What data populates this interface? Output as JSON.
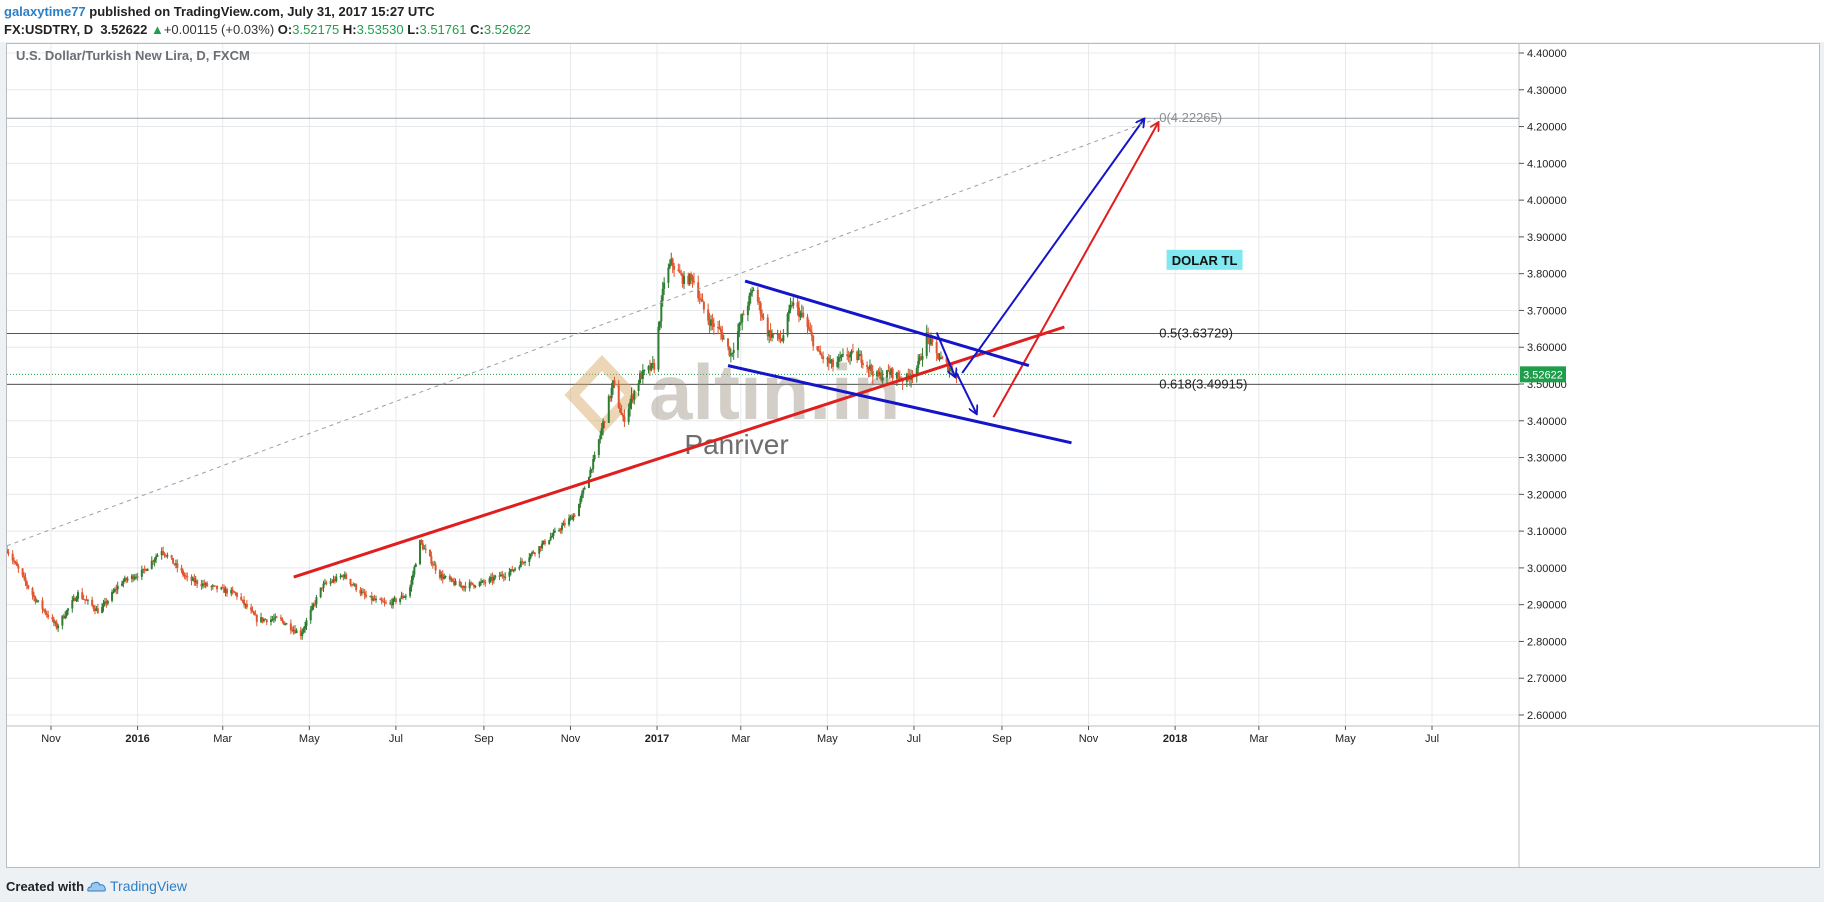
{
  "header": {
    "author": "galaxytime77",
    "published": "published on TradingView.com, July 31, 2017 15:27 UTC",
    "symbol": "FX:USDTRY, D",
    "last": "3.52622",
    "change": "+0.00115 (+0.03%)",
    "o_label": "O:",
    "o_value": "3.52175",
    "h_label": "H:",
    "h_value": "3.53530",
    "l_label": "L:",
    "l_value": "3.51761",
    "c_label": "C:",
    "c_value": "3.52622"
  },
  "footer": {
    "created_with": "Created with",
    "brand": "TradingView"
  },
  "colors": {
    "up_candle": "#2e7d32",
    "down_candle": "#e0552d",
    "trend_red": "#e01e1e",
    "channel_blue": "#1414c8",
    "price_badge": "#1e9e4b",
    "label_bg": "#7fe8f0"
  },
  "chart_data": {
    "type": "candlestick",
    "title": "U.S. Dollar/Turkish New Lira, D, FXCM",
    "ylim": [
      2.56,
      4.45
    ],
    "yticks": [
      "4.40000",
      "4.30000",
      "4.20000",
      "4.10000",
      "4.00000",
      "3.90000",
      "3.80000",
      "3.70000",
      "3.60000",
      "3.50000",
      "3.40000",
      "3.30000",
      "3.20000",
      "3.10000",
      "3.00000",
      "2.90000",
      "2.80000",
      "2.70000",
      "2.60000"
    ],
    "xticks": [
      "Nov",
      "2016",
      "Mar",
      "May",
      "Jul",
      "Sep",
      "Nov",
      "2017",
      "Mar",
      "May",
      "Jul",
      "Sep",
      "Nov",
      "2018",
      "Mar",
      "May",
      "Jul"
    ],
    "current_price": "3.52622",
    "fib_levels": [
      {
        "label": "0(4.22265)",
        "value": 4.22265
      },
      {
        "label": "0.5(3.63729)",
        "value": 3.63729
      },
      {
        "label": "0.618(3.49915)",
        "value": 3.49915
      }
    ],
    "price_path": [
      [
        "2015-10-01",
        3.05
      ],
      [
        "2015-10-20",
        2.92
      ],
      [
        "2015-11-05",
        2.84
      ],
      [
        "2015-11-20",
        2.93
      ],
      [
        "2015-12-05",
        2.88
      ],
      [
        "2015-12-20",
        2.96
      ],
      [
        "2016-01-05",
        2.99
      ],
      [
        "2016-01-18",
        3.05
      ],
      [
        "2016-02-05",
        2.97
      ],
      [
        "2016-02-20",
        2.95
      ],
      [
        "2016-03-10",
        2.93
      ],
      [
        "2016-03-25",
        2.86
      ],
      [
        "2016-04-10",
        2.86
      ],
      [
        "2016-04-25",
        2.82
      ],
      [
        "2016-05-10",
        2.95
      ],
      [
        "2016-05-25",
        2.98
      ],
      [
        "2016-06-10",
        2.92
      ],
      [
        "2016-06-25",
        2.9
      ],
      [
        "2016-07-10",
        2.93
      ],
      [
        "2016-07-18",
        3.07
      ],
      [
        "2016-08-01",
        2.98
      ],
      [
        "2016-08-15",
        2.95
      ],
      [
        "2016-09-01",
        2.96
      ],
      [
        "2016-09-20",
        2.99
      ],
      [
        "2016-10-05",
        3.04
      ],
      [
        "2016-10-20",
        3.09
      ],
      [
        "2016-11-05",
        3.15
      ],
      [
        "2016-11-18",
        3.3
      ],
      [
        "2016-12-01",
        3.5
      ],
      [
        "2016-12-08",
        3.4
      ],
      [
        "2016-12-20",
        3.52
      ],
      [
        "2016-12-30",
        3.55
      ],
      [
        "2017-01-06",
        3.78
      ],
      [
        "2017-01-11",
        3.83
      ],
      [
        "2017-01-20",
        3.78
      ],
      [
        "2017-01-26",
        3.79
      ],
      [
        "2017-02-05",
        3.68
      ],
      [
        "2017-02-15",
        3.64
      ],
      [
        "2017-02-22",
        3.58
      ],
      [
        "2017-03-02",
        3.68
      ],
      [
        "2017-03-10",
        3.76
      ],
      [
        "2017-03-20",
        3.64
      ],
      [
        "2017-03-30",
        3.62
      ],
      [
        "2017-04-06",
        3.72
      ],
      [
        "2017-04-14",
        3.68
      ],
      [
        "2017-04-25",
        3.58
      ],
      [
        "2017-05-05",
        3.55
      ],
      [
        "2017-05-15",
        3.58
      ],
      [
        "2017-05-25",
        3.57
      ],
      [
        "2017-06-05",
        3.52
      ],
      [
        "2017-06-15",
        3.53
      ],
      [
        "2017-06-25",
        3.51
      ],
      [
        "2017-07-04",
        3.55
      ],
      [
        "2017-07-10",
        3.63
      ],
      [
        "2017-07-17",
        3.58
      ],
      [
        "2017-07-24",
        3.55
      ],
      [
        "2017-07-31",
        3.5262
      ]
    ],
    "annotations": [
      {
        "name": "red-trend-line",
        "color": "red",
        "from": [
          "2016-04-20",
          2.975
        ],
        "to": [
          "2017-10-15",
          3.655
        ]
      },
      {
        "name": "red-projection-arrow",
        "color": "red",
        "from": [
          "2017-08-26",
          3.41
        ],
        "to": [
          "2017-12-20",
          4.21
        ]
      },
      {
        "name": "blue-upper-channel",
        "color": "blue",
        "from": [
          "2017-03-04",
          3.78
        ],
        "to": [
          "2017-09-20",
          3.55
        ]
      },
      {
        "name": "blue-lower-channel",
        "color": "blue",
        "from": [
          "2017-02-20",
          3.55
        ],
        "to": [
          "2017-10-20",
          3.34
        ]
      },
      {
        "name": "blue-small-arrow",
        "color": "blue",
        "from": [
          "2017-07-17",
          3.64
        ],
        "to": [
          "2017-07-30",
          3.52
        ]
      },
      {
        "name": "blue-down-arrow",
        "color": "blue",
        "from": [
          "2017-07-31",
          3.53
        ],
        "to": [
          "2017-08-14",
          3.42
        ]
      },
      {
        "name": "blue-up-arrow",
        "color": "blue",
        "from": [
          "2017-08-04",
          3.53
        ],
        "to": [
          "2017-12-10",
          4.22
        ]
      },
      {
        "name": "dashed-fib-trend",
        "color": "gray",
        "from": [
          "2015-10-01",
          3.06
        ],
        "to": [
          "2017-12-18",
          4.22
        ]
      }
    ],
    "text_labels": [
      {
        "text": "DOLAR  TL",
        "date": "2017-12-26",
        "value": 3.835
      },
      {
        "text": "altın.in",
        "date": "2017-01-08",
        "value": 3.47
      },
      {
        "text": "Panriver",
        "date": "2017-02-26",
        "value": 3.31
      }
    ]
  }
}
